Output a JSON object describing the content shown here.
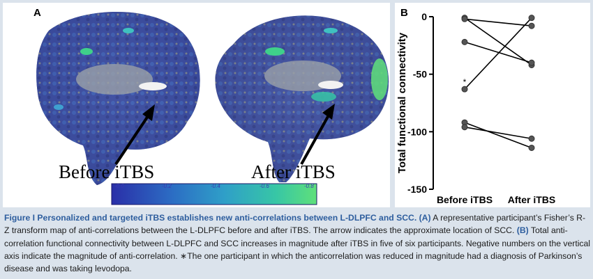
{
  "panel_a": {
    "label": "A",
    "left_caption": "Before iTBS",
    "right_caption": "After iTBS",
    "colorbar": {
      "ticks": [
        "-0.0",
        "-0.2",
        "-0.4",
        "-0.6",
        "-0.8"
      ],
      "colors": [
        "#2a2fa8",
        "#2c6ec4",
        "#2f9fc8",
        "#37c6a6",
        "#5fe07a"
      ]
    }
  },
  "panel_b": {
    "label": "B",
    "chart_data": {
      "type": "line",
      "ylabel": "Total functional connectivity",
      "categories": [
        "Before iTBS",
        "After iTBS"
      ],
      "ylim": [
        -150,
        0
      ],
      "yticks": [
        0,
        -50,
        -100,
        -150
      ],
      "series": [
        {
          "values": [
            -1,
            -42
          ]
        },
        {
          "values": [
            -2,
            -8
          ]
        },
        {
          "values": [
            -22,
            -40
          ]
        },
        {
          "values": [
            -63,
            -1
          ]
        },
        {
          "values": [
            -92,
            -114
          ]
        },
        {
          "values": [
            -96,
            -106
          ]
        }
      ],
      "annotation": {
        "text": "*",
        "at_category": "Before iTBS",
        "value": -57
      }
    }
  },
  "caption": {
    "figure_label": "Figure I",
    "title": "Personalized and targeted iTBS establishes new anti-correlations between L-DLPFC and SCC.",
    "ref_a": "(A)",
    "text_a": "A representative participant’s Fisher’s R-Z transform map of anti-correlations between the L-DLPFC before and after iTBS. The arrow indicates the approximate location of SCC.",
    "ref_b": "(B)",
    "text_b": "Total anti-correlation functional connectivity between L-DLPFC and SCC increases in magnitude after iTBS in five of six participants. Negative numbers on the vertical axis indicate the magnitude of anti-correlation. ∗The one participant in which the anticorrelation was reduced in magnitude had a diagnosis of Parkinson’s disease and was taking levodopa."
  }
}
